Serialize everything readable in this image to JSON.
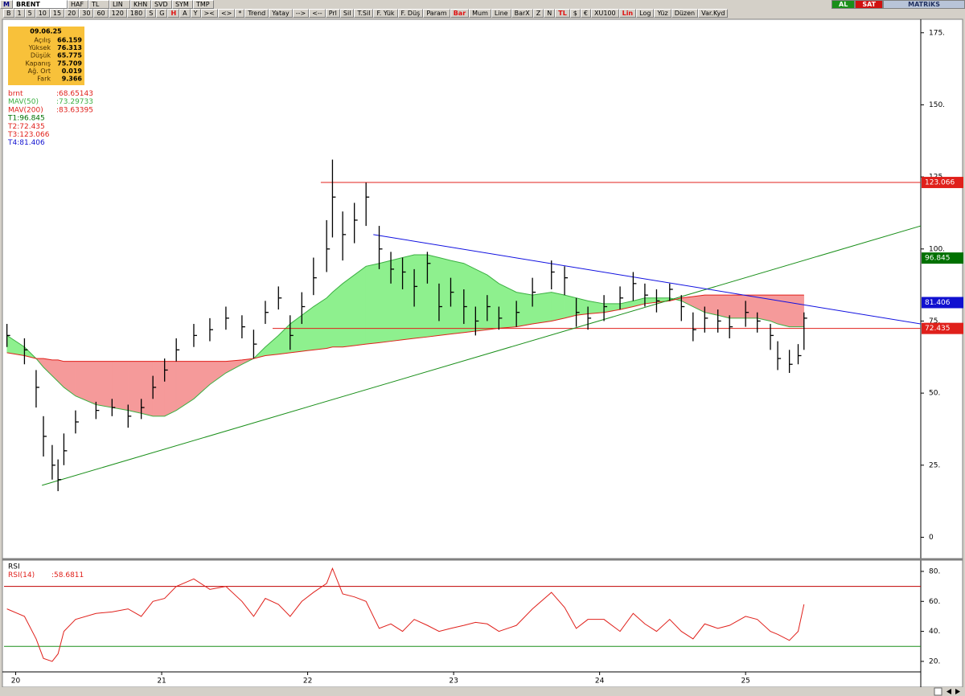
{
  "toolbar": {
    "logo": "M",
    "row1": [
      "BRENT",
      "HAF",
      "TL",
      "LIN",
      "KHN",
      "SVD",
      "SYM",
      "TMP"
    ],
    "row2": [
      "B",
      "1",
      "5",
      "10",
      "15",
      "20",
      "30",
      "60",
      "120",
      "180",
      "S",
      "G",
      {
        "text": "H",
        "active": true
      },
      "A",
      "Y",
      "><",
      "<>",
      "*",
      "Trend",
      "Yatay",
      "-->",
      "<--",
      "Prl",
      "Sil",
      "T.Sil",
      "F. Yük",
      "F. Düş",
      "Param",
      {
        "text": "Bar",
        "active": true
      },
      "Mum",
      "Line",
      "BarX",
      "Z",
      "N",
      {
        "text": "TL",
        "active": true
      },
      "$",
      "€",
      "XU100",
      {
        "text": "Lin",
        "active": true
      },
      "Log",
      "Yüz",
      "Düzen",
      "Var.Kyd"
    ],
    "right": [
      {
        "text": "AL",
        "color": "#1a8f1a"
      },
      {
        "text": "SAT",
        "color": "#d01010"
      },
      {
        "text": "MATRiKS",
        "color": "#b8c4d8"
      }
    ]
  },
  "info_box": {
    "date": "09.06.25",
    "rows": [
      [
        "Açılış",
        "66.159"
      ],
      [
        "Yüksek",
        "76.313"
      ],
      [
        "Düşük",
        "65.775"
      ],
      [
        "Kapanış",
        "75.709"
      ],
      [
        "Ağ. Ort",
        "0.019"
      ],
      [
        "Fark",
        "9.366"
      ]
    ]
  },
  "chart_data": [
    {
      "type": "ohlc",
      "x": [
        19.94,
        20.06,
        20.14,
        20.19,
        20.25,
        20.29,
        20.33,
        20.41,
        20.55,
        20.66,
        20.77,
        20.86,
        20.94,
        21.02,
        21.1,
        21.22,
        21.33,
        21.44,
        21.55,
        21.63,
        21.71,
        21.8,
        21.88,
        21.96,
        22.04,
        22.13,
        22.17,
        22.24,
        22.32,
        22.4,
        22.49,
        22.57,
        22.65,
        22.73,
        22.82,
        22.9,
        22.98,
        23.07,
        23.15,
        23.23,
        23.31,
        23.43,
        23.54,
        23.67,
        23.76,
        23.84,
        23.92,
        24.03,
        24.14,
        24.23,
        24.31,
        24.39,
        24.48,
        24.56,
        24.64,
        24.72,
        24.81,
        24.89,
        25.0,
        25.08,
        25.17,
        25.22,
        25.3,
        25.36,
        25.4
      ],
      "series": [
        {
          "name": "brnt",
          "value_label": ":68.65143",
          "color": "#000000",
          "legend_color": "#e0201b",
          "high": [
            74,
            69,
            58,
            42,
            32,
            27,
            36,
            44,
            47,
            48,
            46,
            48,
            56,
            62,
            69,
            74,
            76,
            80,
            77,
            72,
            82,
            87,
            77,
            85,
            97,
            110,
            131,
            113,
            116,
            123,
            108,
            99,
            97,
            93,
            99,
            88,
            90,
            86,
            80,
            84,
            80,
            82,
            90,
            96,
            94,
            83,
            80,
            84,
            87,
            92,
            88,
            86,
            88,
            84,
            78,
            80,
            79,
            77,
            82,
            78,
            74,
            68,
            65,
            67,
            78
          ],
          "low": [
            66,
            60,
            45,
            28,
            20,
            16,
            25,
            36,
            41,
            42,
            38,
            41,
            48,
            54,
            61,
            66,
            68,
            72,
            69,
            62,
            74,
            79,
            65,
            74,
            84,
            92,
            104,
            96,
            102,
            108,
            93,
            88,
            86,
            80,
            88,
            75,
            80,
            74,
            70,
            75,
            72,
            73,
            80,
            86,
            84,
            73,
            72,
            75,
            79,
            82,
            80,
            78,
            82,
            75,
            68,
            71,
            71,
            69,
            73,
            71,
            65,
            58,
            57,
            60,
            65
          ],
          "close": [
            70,
            65,
            52,
            35,
            25,
            20,
            30,
            40,
            44,
            45,
            42,
            45,
            52,
            58,
            65,
            70,
            72,
            76,
            73,
            67,
            78,
            83,
            70,
            80,
            90,
            100,
            118,
            105,
            110,
            118,
            100,
            93,
            92,
            87,
            95,
            80,
            85,
            80,
            75,
            80,
            76,
            78,
            85,
            92,
            90,
            78,
            76,
            80,
            83,
            88,
            84,
            82,
            86,
            80,
            72,
            76,
            75,
            73,
            78,
            75,
            70,
            62,
            60,
            63,
            76
          ]
        }
      ],
      "lines": [
        {
          "name": "MAV(50)",
          "value_label": ":73.29733",
          "color": "#3cb043",
          "values": [
            70,
            66,
            62,
            59,
            56,
            54,
            52,
            49,
            46,
            45,
            44,
            43,
            42,
            42,
            44,
            48,
            53,
            57,
            60,
            62,
            66,
            70,
            74,
            77,
            80,
            83,
            85,
            88,
            91,
            94,
            95,
            96,
            97,
            98,
            98,
            97,
            96,
            95,
            93,
            91,
            88,
            85,
            84,
            85,
            84,
            83,
            82,
            81,
            81,
            82,
            83,
            83,
            83,
            82,
            80,
            78,
            77,
            76,
            76,
            76,
            75,
            74,
            73,
            73,
            73
          ]
        },
        {
          "name": "MAV(200)",
          "value_label": ":83.63395",
          "color": "#e0201b",
          "values": [
            64,
            63,
            62,
            62,
            61.5,
            61.5,
            61,
            61,
            61,
            61,
            61,
            61,
            61,
            61,
            61,
            61,
            61,
            61,
            61.5,
            62,
            63,
            63.5,
            64,
            64.5,
            65,
            65.5,
            66,
            66,
            66.5,
            67,
            67.5,
            68,
            68.5,
            69,
            69.5,
            70,
            70.5,
            71,
            71.5,
            72,
            72.5,
            73,
            74,
            75,
            76,
            77,
            77.5,
            78,
            79,
            80,
            81,
            81.5,
            82,
            83,
            83.5,
            84,
            84,
            84,
            84,
            84,
            84,
            84,
            84,
            84,
            84
          ]
        }
      ],
      "band_colors": {
        "above": "#8ef08e",
        "below": "#f59a9a"
      },
      "hlines": [
        {
          "name": "T1:96.845",
          "value": 96.845,
          "color": "#007000"
        },
        {
          "name": "T2:72.435",
          "value": 72.435,
          "color": "#e0201b",
          "from": 21.76
        },
        {
          "name": "T3:123.066",
          "value": 123.066,
          "color": "#e0201b",
          "from": 22.09
        },
        {
          "name": "T4:81.406",
          "value": 81.406,
          "color": "#1010d0"
        }
      ],
      "trendlines": [
        {
          "color": "#1a8f1a",
          "x": [
            20.18,
            26.2
          ],
          "y": [
            18,
            108
          ]
        },
        {
          "color": "#1010e0",
          "x": [
            22.45,
            26.2
          ],
          "y": [
            105,
            74
          ]
        }
      ],
      "xlim": [
        19.92,
        26.2
      ],
      "ylim": [
        -6,
        178
      ],
      "yticks": [
        0,
        {
          "value": 25,
          "label": "25."
        },
        {
          "value": 50,
          "label": "50."
        },
        {
          "value": 75,
          "label": "75."
        },
        {
          "value": 100,
          "label": "100."
        },
        {
          "value": 125,
          "label": "125."
        },
        {
          "value": 150,
          "label": "150."
        },
        {
          "value": 175,
          "label": "175."
        }
      ]
    },
    {
      "type": "line",
      "title": "RSI",
      "x": [
        19.94,
        20.06,
        20.14,
        20.19,
        20.25,
        20.29,
        20.33,
        20.41,
        20.55,
        20.66,
        20.77,
        20.86,
        20.94,
        21.02,
        21.1,
        21.22,
        21.33,
        21.44,
        21.55,
        21.63,
        21.71,
        21.8,
        21.88,
        21.96,
        22.04,
        22.13,
        22.17,
        22.24,
        22.32,
        22.4,
        22.49,
        22.57,
        22.65,
        22.73,
        22.82,
        22.9,
        22.98,
        23.07,
        23.15,
        23.23,
        23.31,
        23.43,
        23.54,
        23.67,
        23.76,
        23.84,
        23.92,
        24.03,
        24.14,
        24.23,
        24.31,
        24.39,
        24.48,
        24.56,
        24.64,
        24.72,
        24.81,
        24.89,
        25.0,
        25.08,
        25.17,
        25.22,
        25.3,
        25.36,
        25.4
      ],
      "series": [
        {
          "name": "RSI(14)",
          "value_label": ":58.6811",
          "color": "#e0201b",
          "values": [
            55,
            50,
            35,
            22,
            20,
            25,
            40,
            48,
            52,
            53,
            55,
            50,
            60,
            62,
            70,
            75,
            68,
            70,
            60,
            50,
            62,
            58,
            50,
            60,
            66,
            72,
            82,
            65,
            63,
            60,
            42,
            45,
            40,
            48,
            44,
            40,
            42,
            44,
            46,
            45,
            40,
            44,
            55,
            66,
            56,
            42,
            48,
            48,
            40,
            52,
            45,
            40,
            48,
            40,
            35,
            45,
            42,
            44,
            50,
            48,
            40,
            38,
            34,
            40,
            58
          ]
        }
      ],
      "hlines": [
        {
          "value": 70,
          "color": "#c00000"
        },
        {
          "value": 30,
          "color": "#1a8f1a"
        }
      ],
      "xlim": [
        19.92,
        26.2
      ],
      "ylim": [
        14.6,
        84.8
      ],
      "xticks": [
        20,
        21,
        22,
        23,
        24,
        25
      ],
      "yticks": [
        {
          "value": 20,
          "label": "20."
        },
        {
          "value": 40,
          "label": "40."
        },
        {
          "value": 60,
          "label": "60."
        },
        {
          "value": 80,
          "label": "80."
        }
      ]
    }
  ]
}
